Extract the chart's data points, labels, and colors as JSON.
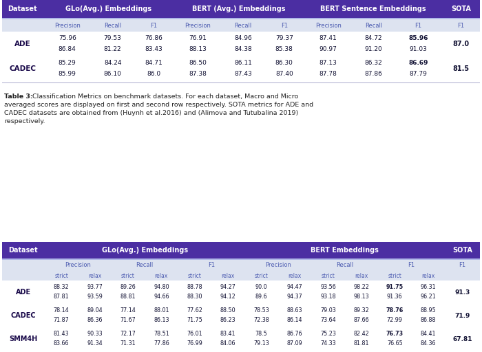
{
  "bg_color": "#ffffff",
  "header_bg": "#4B2EA2",
  "header_text_color": "#ffffff",
  "subheader_bg": "#dde3f0",
  "subheader_text_color": "#4a5ab0",
  "data_text_color": "#111133",
  "dataset_text_color": "#1a0a4a",
  "caption_text_color": "#222222",
  "separator_color": "#aaaacc",
  "table1_data": [
    [
      "ADE",
      "75.96\n86.84",
      "79.53\n81.22",
      "76.86\n83.43",
      "76.91\n88.13",
      "84.96\n84.38",
      "79.37\n85.38",
      "87.41\n90.97",
      "84.72\n91.20",
      "85.96\n91.03",
      "87.0"
    ],
    [
      "CADEC",
      "85.29\n85.99",
      "84.24\n86.10",
      "84.71\n86.0",
      "86.50\n87.38",
      "86.11\n87.43",
      "86.30\n87.40",
      "87.13\n87.78",
      "86.32\n87.86",
      "86.69\n87.79",
      "81.5"
    ]
  ],
  "table1_bold_f1": [
    "85.96",
    "86.69"
  ],
  "table1_bold_sota": [
    "87.0",
    "81.5"
  ],
  "caption_bold": "Table 3:",
  "caption_rest": " Classification Metrics on benchmark datasets. For each dataset, Macro and Micro\naveraged scores are displayed on first and second row respectively. SOTA metrics for ADE and\nCADEC datasets are obtained from (Huynh et al.2016) and (Alimova and Tutubalina 2019)\nrespectively.",
  "table2_data": [
    [
      "ADE",
      "88.32\n87.81",
      "93.77\n93.59",
      "89.26\n88.81",
      "94.80\n94.66",
      "88.78\n88.30",
      "94.27\n94.12",
      "90.0\n89.6",
      "94.47\n94.37",
      "93.56\n93.18",
      "98.22\n98.13",
      "91.75\n91.36",
      "96.31\n96.21",
      "91.3"
    ],
    [
      "CADEC",
      "78.14\n71.87",
      "89.04\n86.36",
      "77.14\n71.67",
      "88.01\n86.13",
      "77.62\n71.75",
      "88.50\n86.23",
      "78.53\n72.38",
      "88.63\n86.14",
      "79.03\n73.64",
      "89.32\n87.66",
      "78.76\n72.99",
      "88.95\n86.88",
      "71.9"
    ],
    [
      "SMM4H",
      "81.43\n83.66",
      "90.33\n91.34",
      "72.17\n71.31",
      "78.51\n77.86",
      "76.01\n76.99",
      "83.41\n84.06",
      "78.5\n79.13",
      "86.76\n87.09",
      "75.23\n74.33",
      "82.42\n81.81",
      "76.73\n76.65",
      "84.41\n84.36",
      "67.81"
    ]
  ],
  "table2_bold_f1": [
    "91.75",
    "78.76",
    "76.73"
  ],
  "table2_bold_sota": [
    "91.3",
    "71.9",
    "67.81"
  ]
}
